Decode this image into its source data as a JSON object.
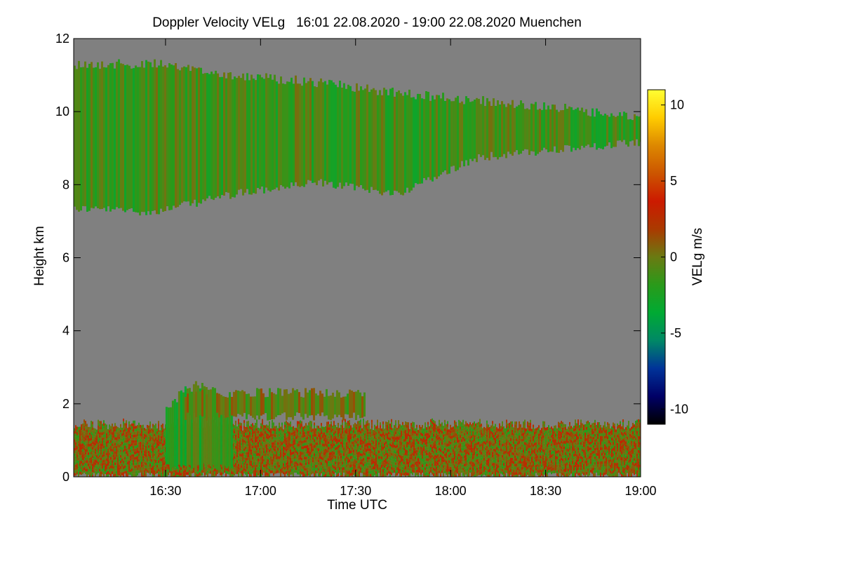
{
  "chart_data": {
    "type": "heatmap",
    "title": "Doppler Velocity VELg   16:01 22.08.2020 - 19:00 22.08.2020 Muenchen",
    "xlabel": "Time UTC",
    "ylabel": "Height km",
    "colorbar_label": "VELg m/s",
    "x_range_hours": [
      16.0167,
      19.0
    ],
    "y_range_km": [
      0,
      12
    ],
    "color_range": [
      -11,
      11
    ],
    "x_ticks": [
      {
        "value": 16.5,
        "label": "16:30"
      },
      {
        "value": 17.0,
        "label": "17:00"
      },
      {
        "value": 17.5,
        "label": "17:30"
      },
      {
        "value": 18.0,
        "label": "18:00"
      },
      {
        "value": 18.5,
        "label": "18:30"
      },
      {
        "value": 19.0,
        "label": "19:00"
      }
    ],
    "y_ticks": [
      {
        "value": 0,
        "label": "0"
      },
      {
        "value": 2,
        "label": "2"
      },
      {
        "value": 4,
        "label": "4"
      },
      {
        "value": 6,
        "label": "6"
      },
      {
        "value": 8,
        "label": "8"
      },
      {
        "value": 10,
        "label": "10"
      },
      {
        "value": 12,
        "label": "12"
      }
    ],
    "colorbar_ticks": [
      {
        "value": 10,
        "label": "10"
      },
      {
        "value": 5,
        "label": "5"
      },
      {
        "value": 0,
        "label": "0"
      },
      {
        "value": -5,
        "label": "-5"
      },
      {
        "value": -10,
        "label": "-10"
      }
    ],
    "colormap": [
      "#000000",
      "#000066",
      "#003399",
      "#008866",
      "#00aa33",
      "#2a9a1a",
      "#6a7a12",
      "#aa3a00",
      "#cc1a00",
      "#cc5500",
      "#dd8800",
      "#ffcc00",
      "#ffff33"
    ],
    "background_color": "#808080",
    "features": [
      {
        "name": "cirrus layer",
        "time_start": 16.0167,
        "time_end": 19.0,
        "height_bottom_km": [
          7.4,
          7.3,
          7.8,
          8.1,
          7.8,
          8.8,
          9.0,
          9.2
        ],
        "height_top_km": [
          11.3,
          11.3,
          11.0,
          10.8,
          10.5,
          10.3,
          10.1,
          9.8
        ],
        "mean_velocity_ms": -1.5
      },
      {
        "name": "boundary layer",
        "time_start": 16.0167,
        "time_end": 19.0,
        "height_bottom_km": 0.05,
        "height_top_km": 1.4,
        "mean_velocity_ms": 0.5
      },
      {
        "name": "convective plume",
        "time_start": 16.5,
        "time_end": 16.85,
        "height_bottom_km": 0.3,
        "height_top_km": 2.5,
        "mean_velocity_ms": -2.0
      },
      {
        "name": "mid-level layer",
        "time_start": 16.6,
        "time_end": 17.55,
        "height_bottom_km": 1.7,
        "height_top_km": 2.3,
        "mean_velocity_ms": -0.5
      }
    ]
  }
}
